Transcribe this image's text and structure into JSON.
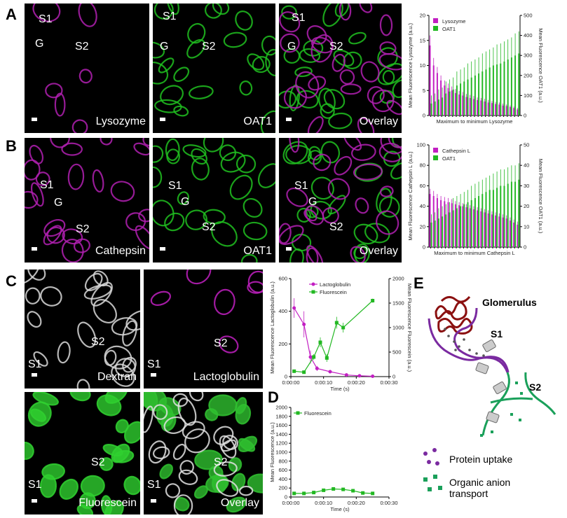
{
  "panel_letters": [
    "A",
    "B",
    "C",
    "D",
    "E"
  ],
  "images": [
    {
      "labels": [
        "S1",
        "G",
        "S2",
        "Lysozyme"
      ]
    },
    {
      "labels": [
        "S1",
        "G",
        "S2",
        "OAT1"
      ]
    },
    {
      "labels": [
        "S1",
        "G",
        "S2",
        "Overlay"
      ]
    },
    {
      "labels": [
        "S1",
        "G",
        "S2",
        "Cathepsin"
      ]
    },
    {
      "labels": [
        "S1",
        "G",
        "S2",
        "OAT1"
      ]
    },
    {
      "labels": [
        "S1",
        "G",
        "S2",
        "Overlay"
      ]
    },
    {
      "labels": [
        "S2",
        "S1",
        "Dextran"
      ]
    },
    {
      "labels": [
        "S2",
        "S1",
        "Lactoglobulin"
      ]
    },
    {
      "labels": [
        "S2",
        "S1",
        "Fluorescein"
      ]
    },
    {
      "labels": [
        "S2",
        "S1",
        "Overlay"
      ]
    }
  ],
  "chart_data": [
    {
      "type": "bar",
      "ylabel": "Mean Fluorescence Lysozyme (a.u.)",
      "y2label": "Mean Fluorescence OAT1 (a.u.)",
      "xlabel": "Maximum to minimum Lysozyme",
      "categories": [
        null,
        null,
        null,
        null,
        null,
        null,
        null,
        null,
        null,
        null,
        null,
        null,
        null,
        null,
        null,
        null,
        null,
        null,
        null,
        null,
        null,
        null,
        null,
        null,
        null
      ],
      "ylim": [
        0,
        20
      ],
      "yticks": [
        0,
        5,
        10,
        15,
        20
      ],
      "y2lim": [
        0,
        500
      ],
      "y2ticks": [
        0,
        100,
        200,
        300,
        400,
        500
      ],
      "legend": "upper left",
      "series": [
        {
          "name": "Lysozyme",
          "color": "#c21fc2",
          "values": [
            14,
            10,
            8.5,
            7,
            6,
            5.5,
            5,
            4.5,
            4.2,
            4,
            3.7,
            3.5,
            3.3,
            3.1,
            3,
            2.8,
            2.6,
            2.5,
            2.3,
            2.2,
            2,
            1.9,
            1.7,
            1.5,
            1.2
          ],
          "errors": [
            2,
            1.5,
            1.2,
            1,
            1,
            0.9,
            0.8,
            0.8,
            0.7,
            0.7,
            0.6,
            0.6,
            0.6,
            0.5,
            0.5,
            0.5,
            0.5,
            0.4,
            0.4,
            0.4,
            0.4,
            0.3,
            0.3,
            0.3,
            0.3
          ]
        },
        {
          "name": "OAT1",
          "color": "#22b822",
          "axis": "y2",
          "values": [
            60,
            70,
            80,
            90,
            110,
            120,
            130,
            150,
            160,
            170,
            180,
            190,
            200,
            210,
            220,
            230,
            240,
            250,
            255,
            260,
            270,
            280,
            290,
            300,
            310
          ],
          "errors": [
            40,
            40,
            50,
            50,
            60,
            60,
            60,
            70,
            70,
            70,
            80,
            80,
            80,
            80,
            90,
            90,
            90,
            90,
            100,
            100,
            100,
            100,
            100,
            110,
            110
          ]
        }
      ]
    },
    {
      "type": "bar",
      "ylabel": "Mean Fluorescence Cathepsin L (a.u.)",
      "y2label": "Mean Fluorescence OAT1 (a.u.)",
      "xlabel": "Maximum to minimum Cathepsin L",
      "categories": [
        null,
        null,
        null,
        null,
        null,
        null,
        null,
        null,
        null,
        null,
        null,
        null,
        null,
        null,
        null,
        null,
        null,
        null,
        null,
        null,
        null,
        null,
        null,
        null,
        null
      ],
      "ylim": [
        0,
        100
      ],
      "yticks": [
        0,
        20,
        40,
        60,
        80,
        100
      ],
      "y2lim": [
        0,
        50
      ],
      "y2ticks": [
        0,
        10,
        20,
        30,
        40,
        50
      ],
      "legend": "upper left",
      "series": [
        {
          "name": "Cathepsin L",
          "color": "#c21fc2",
          "values": [
            52,
            50,
            48,
            46,
            45,
            44,
            43,
            42,
            41,
            40,
            39,
            38,
            37,
            36,
            35,
            34,
            33,
            32,
            31,
            30,
            29,
            28,
            26,
            24,
            22
          ],
          "errors": [
            5,
            5,
            4,
            4,
            4,
            4,
            4,
            3,
            3,
            3,
            3,
            3,
            3,
            3,
            3,
            3,
            3,
            3,
            3,
            3,
            3,
            3,
            3,
            3,
            3
          ]
        },
        {
          "name": "OAT1",
          "color": "#22b822",
          "axis": "y2",
          "values": [
            12,
            13,
            14,
            15,
            16,
            17,
            18,
            19,
            20,
            21,
            22,
            23,
            24,
            25,
            26,
            27,
            28,
            28,
            29,
            30,
            30,
            31,
            32,
            32,
            33
          ],
          "errors": [
            4,
            4,
            5,
            5,
            5,
            5,
            6,
            6,
            6,
            6,
            6,
            7,
            7,
            7,
            7,
            7,
            7,
            8,
            8,
            8,
            8,
            8,
            8,
            8,
            8
          ]
        }
      ]
    },
    {
      "type": "line",
      "ylabel": "Mean Fluorescence Lactoglobulin (a.u.)",
      "y2label": "Mean Fluorescence Fluorescein (a.u.)",
      "xlabel": "Time (s)",
      "xlim": [
        0,
        30
      ],
      "xticks": [
        {
          "value": 0,
          "label": "0:00:00"
        },
        {
          "value": 10,
          "label": "0:00:10"
        },
        {
          "value": 20,
          "label": "0:00:20"
        },
        {
          "value": 30,
          "label": "0:00:30"
        }
      ],
      "ylim": [
        0,
        600
      ],
      "yticks": [
        0,
        200,
        400,
        600
      ],
      "y2lim": [
        0,
        2000
      ],
      "y2ticks": [
        0,
        500,
        1000,
        1500,
        2000
      ],
      "legend": "upper center",
      "series": [
        {
          "name": "Lactoglobulin",
          "color": "#c21fc2",
          "marker": "circle",
          "x": [
            1,
            4,
            6,
            8,
            12,
            17,
            21,
            25
          ],
          "values": [
            420,
            320,
            120,
            50,
            30,
            10,
            5,
            2
          ],
          "errors": [
            60,
            80,
            40,
            15,
            10,
            5,
            3,
            2
          ]
        },
        {
          "name": "Fluorescein",
          "color": "#22b822",
          "marker": "square",
          "axis": "y2",
          "x": [
            1,
            4,
            7,
            9,
            11,
            14,
            16,
            25
          ],
          "values": [
            110,
            90,
            400,
            700,
            380,
            1100,
            1000,
            1550
          ],
          "errors": [
            20,
            15,
            60,
            100,
            80,
            120,
            100,
            40
          ]
        }
      ]
    },
    {
      "type": "line",
      "ylabel": "Mean Fluorescence (a.u.)",
      "xlabel": "Time (s)",
      "xlim": [
        0,
        30
      ],
      "xticks": [
        {
          "value": 0,
          "label": "0:00:00"
        },
        {
          "value": 10,
          "label": "0:00:10"
        },
        {
          "value": 20,
          "label": "0:00:20"
        },
        {
          "value": 30,
          "label": "0:00:30"
        }
      ],
      "ylim": [
        0,
        2000
      ],
      "yticks": [
        0,
        200,
        400,
        600,
        800,
        1000,
        1200,
        1400,
        1600,
        1800,
        2000
      ],
      "legend": "upper left",
      "series": [
        {
          "name": "Fluorescein",
          "color": "#22b822",
          "marker": "square",
          "x": [
            1,
            4,
            7,
            10,
            13,
            16,
            19,
            22,
            25
          ],
          "values": [
            80,
            80,
            100,
            150,
            180,
            170,
            140,
            90,
            80
          ],
          "errors": [
            10,
            10,
            15,
            20,
            25,
            20,
            20,
            15,
            10
          ]
        }
      ]
    }
  ],
  "diagram": {
    "title": "Glomerulus",
    "segments": [
      "S1",
      "S2"
    ],
    "legend": [
      "Protein uptake",
      "Organic anion",
      "transport"
    ]
  }
}
